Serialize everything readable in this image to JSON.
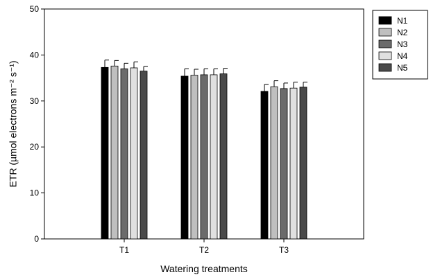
{
  "chart_data": {
    "type": "bar",
    "xlabel": "Watering treatments",
    "ylabel": "ETR (µmol electrons m⁻² s⁻¹)",
    "ylim": [
      0,
      50
    ],
    "yticks": [
      0,
      10,
      20,
      30,
      40,
      50
    ],
    "categories": [
      "T1",
      "T2",
      "T3"
    ],
    "error_bars": true,
    "legend_position": "right",
    "series": [
      {
        "name": "N1",
        "color": "#000000",
        "values": [
          37.3,
          35.4,
          32.1
        ],
        "errors": [
          1.6,
          1.6,
          1.5
        ]
      },
      {
        "name": "N2",
        "color": "#bfbfbf",
        "values": [
          37.6,
          35.6,
          33.1
        ],
        "errors": [
          1.2,
          1.3,
          1.3
        ]
      },
      {
        "name": "N3",
        "color": "#6b6b6b",
        "values": [
          37.0,
          35.7,
          32.7
        ],
        "errors": [
          1.2,
          1.3,
          1.2
        ]
      },
      {
        "name": "N4",
        "color": "#e0e0e0",
        "values": [
          37.2,
          35.7,
          32.8
        ],
        "errors": [
          1.3,
          1.3,
          1.3
        ]
      },
      {
        "name": "N5",
        "color": "#4a4a4a",
        "values": [
          36.5,
          35.9,
          33.0
        ],
        "errors": [
          1.0,
          1.2,
          1.1
        ]
      }
    ]
  }
}
